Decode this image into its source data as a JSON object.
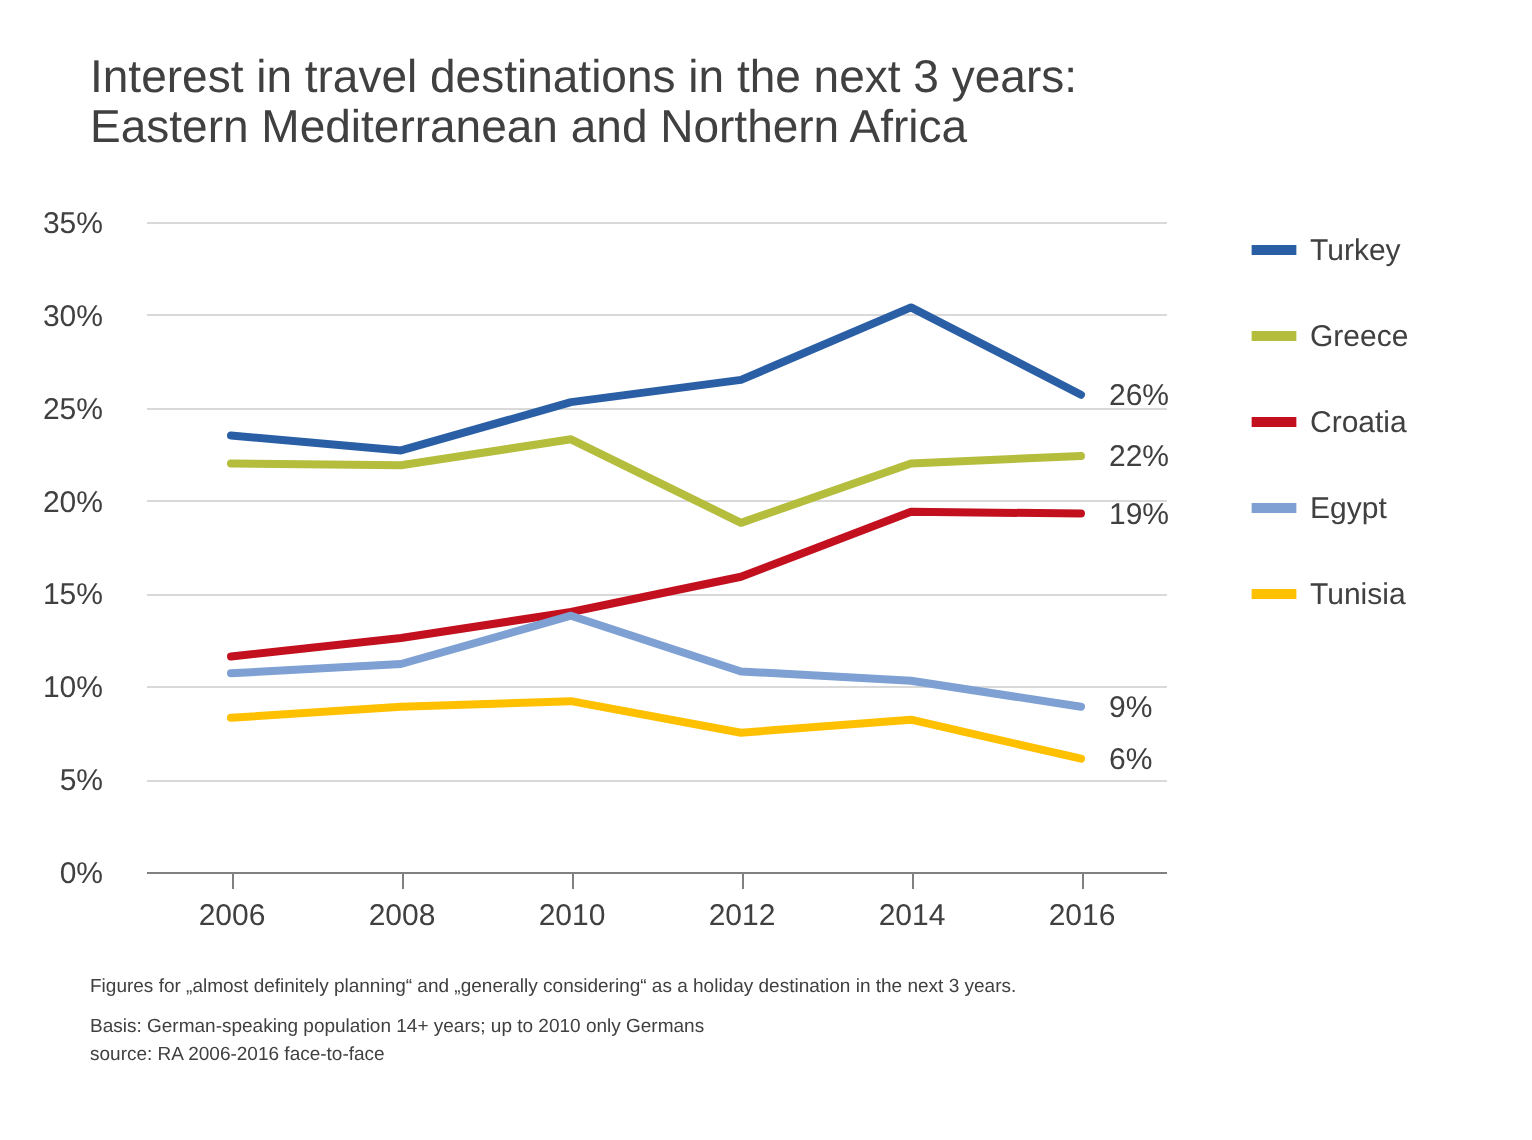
{
  "chart_data": {
    "type": "line",
    "title": "Interest in travel destinations in the next 3 years:\nEastern Mediterranean and Northern Africa",
    "categories": [
      "2006",
      "2008",
      "2010",
      "2012",
      "2014",
      "2016"
    ],
    "series": [
      {
        "name": "Turkey",
        "color": "#2a5fa5",
        "values": [
          23.5,
          22.7,
          25.3,
          26.5,
          30.4,
          25.7
        ],
        "value_labels": [
          null,
          null,
          null,
          null,
          null,
          "26%"
        ]
      },
      {
        "name": "Greece",
        "color": "#b5bd3c",
        "values": [
          22.0,
          21.9,
          23.3,
          18.8,
          22.0,
          22.4
        ],
        "value_labels": [
          null,
          null,
          null,
          null,
          null,
          "22%"
        ]
      },
      {
        "name": "Croatia",
        "color": "#c2101f",
        "values": [
          11.6,
          12.6,
          14.0,
          15.9,
          19.4,
          19.3
        ],
        "value_labels": [
          null,
          null,
          null,
          null,
          null,
          "19%"
        ]
      },
      {
        "name": "Egypt",
        "color": "#7ea0d3",
        "values": [
          10.7,
          11.2,
          13.8,
          10.8,
          10.3,
          8.9
        ],
        "value_labels": [
          null,
          null,
          null,
          null,
          null,
          "9%"
        ]
      },
      {
        "name": "Tunisia",
        "color": "#ffc000",
        "values": [
          8.3,
          8.9,
          9.2,
          7.5,
          8.2,
          6.1
        ],
        "value_labels": [
          null,
          null,
          null,
          null,
          null,
          "6%"
        ]
      }
    ],
    "ylim": [
      0,
      35
    ],
    "yticks": [
      {
        "value": 0,
        "label": "0%"
      },
      {
        "value": 5,
        "label": "5%"
      },
      {
        "value": 10,
        "label": "10%"
      },
      {
        "value": 15,
        "label": "15%"
      },
      {
        "value": 20,
        "label": "20%"
      },
      {
        "value": 25,
        "label": "25%"
      },
      {
        "value": 30,
        "label": "30%"
      },
      {
        "value": 35,
        "label": "35%"
      }
    ],
    "grid": "y",
    "legend": "right",
    "line_style": "solid",
    "annotations": [
      "Figures for „almost definitely planning“ and „generally considering“ as a holiday destination in the next 3 years.",
      "Basis: German-speaking population 14+ years; up to 2010 only Germans",
      "source: RA 2006-2016 face-to-face"
    ]
  }
}
